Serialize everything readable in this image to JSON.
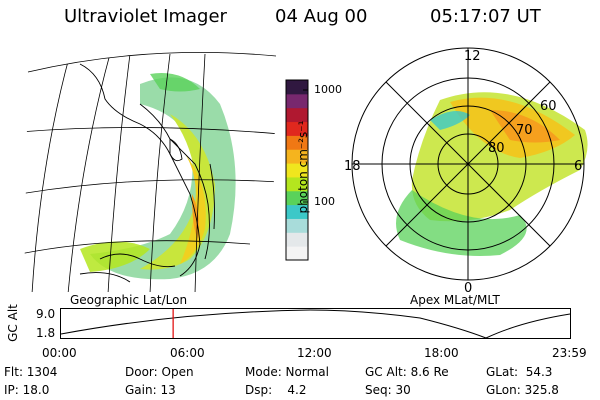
{
  "header": {
    "title": "Ultraviolet Imager",
    "date": "04 Aug 00",
    "time": "05:17:07 UT"
  },
  "colorbar": {
    "label": "photon cm⁻²s⁻¹",
    "tick_high": "1000",
    "tick_mid": "100",
    "colors": [
      "#f4f4f4",
      "#e4e8ea",
      "#a8dcda",
      "#3cc8c8",
      "#5ad25a",
      "#b4e61e",
      "#f0e61e",
      "#f5b41e",
      "#f07814",
      "#e0281e",
      "#b01830",
      "#78286e",
      "#301840"
    ]
  },
  "geographic_panel": {
    "caption": "Geographic Lat/Lon"
  },
  "polar_panel": {
    "caption": "Apex MLat/MLT",
    "mlt_labels": {
      "top": "12",
      "left": "18",
      "right": "6",
      "bottom": "0"
    },
    "lat_labels": [
      "60",
      "70",
      "80"
    ]
  },
  "altitude_plot": {
    "ylabel": "GC Alt",
    "ymax": "9.0",
    "ymin": "1.8",
    "x_ticks": [
      "00:00",
      "06:00",
      "12:00",
      "18:00",
      "23:59"
    ],
    "marker_time": "05:17",
    "marker_color": "#e00000"
  },
  "info": {
    "flt": "Flt: 1304",
    "ip": "IP: 18.0",
    "door": "Door: Open",
    "gain": "Gain: 13",
    "mode": "Mode: Normal",
    "dsp": "Dsp:    4.2",
    "gcalt": "GC Alt: 8.6 Re",
    "seq": "Seq: 30",
    "glat": "GLat:  54.3",
    "glon": "GLon: 325.8"
  }
}
